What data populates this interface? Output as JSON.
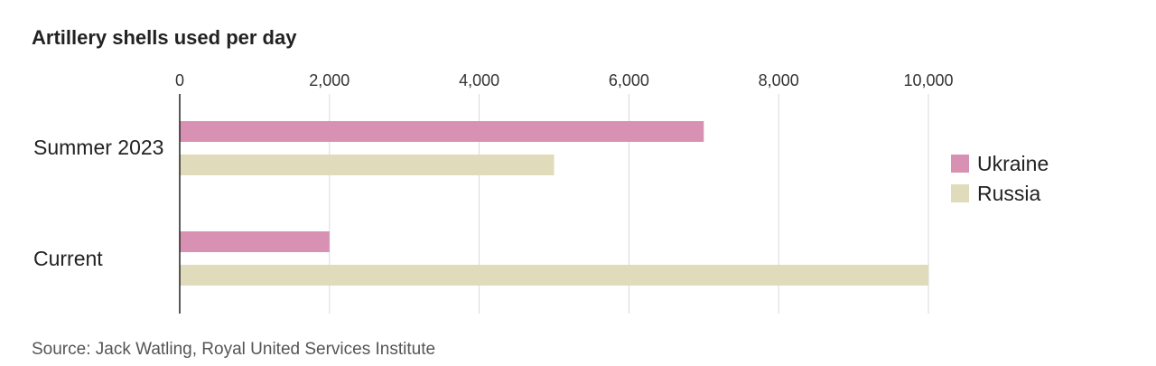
{
  "chart_data": {
    "type": "bar",
    "orientation": "horizontal",
    "title": "Artillery shells used per day",
    "categories": [
      "Summer 2023",
      "Current"
    ],
    "series": [
      {
        "name": "Ukraine",
        "values": [
          7000,
          2000
        ],
        "color": "#d891b3"
      },
      {
        "name": "Russia",
        "values": [
          5000,
          10000
        ],
        "color": "#e0dbbb"
      }
    ],
    "xlim": [
      0,
      10000
    ],
    "xticks": [
      0,
      2000,
      4000,
      6000,
      8000,
      10000
    ],
    "xtick_labels": [
      "0",
      "2,000",
      "4,000",
      "6,000",
      "8,000",
      "10,000"
    ],
    "xlabel": "",
    "ylabel": "",
    "grid": "vertical",
    "legend_position": "right"
  },
  "source": "Source: Jack Watling, Royal United Services Institute"
}
